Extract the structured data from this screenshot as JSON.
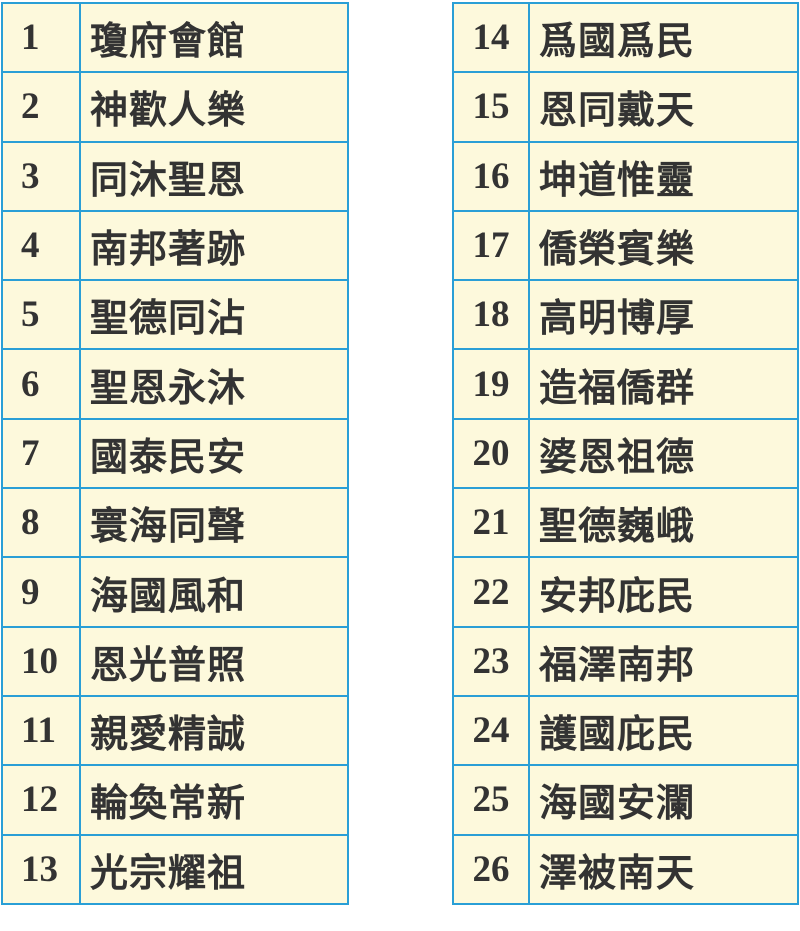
{
  "colors": {
    "border": "#2a9fd6",
    "cell_bg": "#fdf9dc",
    "text": "#333333"
  },
  "left_table": [
    {
      "num": "1",
      "name": "瓊府會館"
    },
    {
      "num": "2",
      "name": "神歡人樂"
    },
    {
      "num": "3",
      "name": "同沐聖恩"
    },
    {
      "num": "4",
      "name": "南邦著跡"
    },
    {
      "num": "5",
      "name": "聖德同沾"
    },
    {
      "num": "6",
      "name": "聖恩永沐"
    },
    {
      "num": "7",
      "name": "國泰民安"
    },
    {
      "num": "8",
      "name": "寰海同聲"
    },
    {
      "num": "9",
      "name": "海國風和"
    },
    {
      "num": "10",
      "name": "恩光普照"
    },
    {
      "num": "11",
      "name": "親愛精誠"
    },
    {
      "num": "12",
      "name": "輪奐常新"
    },
    {
      "num": "13",
      "name": "光宗耀祖"
    }
  ],
  "right_table": [
    {
      "num": "14",
      "name": "爲國爲民"
    },
    {
      "num": "15",
      "name": "恩同戴天"
    },
    {
      "num": "16",
      "name": "坤道惟靈"
    },
    {
      "num": "17",
      "name": "僑榮賓樂"
    },
    {
      "num": "18",
      "name": "高明博厚"
    },
    {
      "num": "19",
      "name": "造福僑群"
    },
    {
      "num": "20",
      "name": "婆恩祖德"
    },
    {
      "num": "21",
      "name": "聖德巍峨"
    },
    {
      "num": "22",
      "name": "安邦庇民"
    },
    {
      "num": "23",
      "name": "福澤南邦"
    },
    {
      "num": "24",
      "name": "護國庇民"
    },
    {
      "num": "25",
      "name": "海國安瀾"
    },
    {
      "num": "26",
      "name": "澤被南天"
    }
  ]
}
